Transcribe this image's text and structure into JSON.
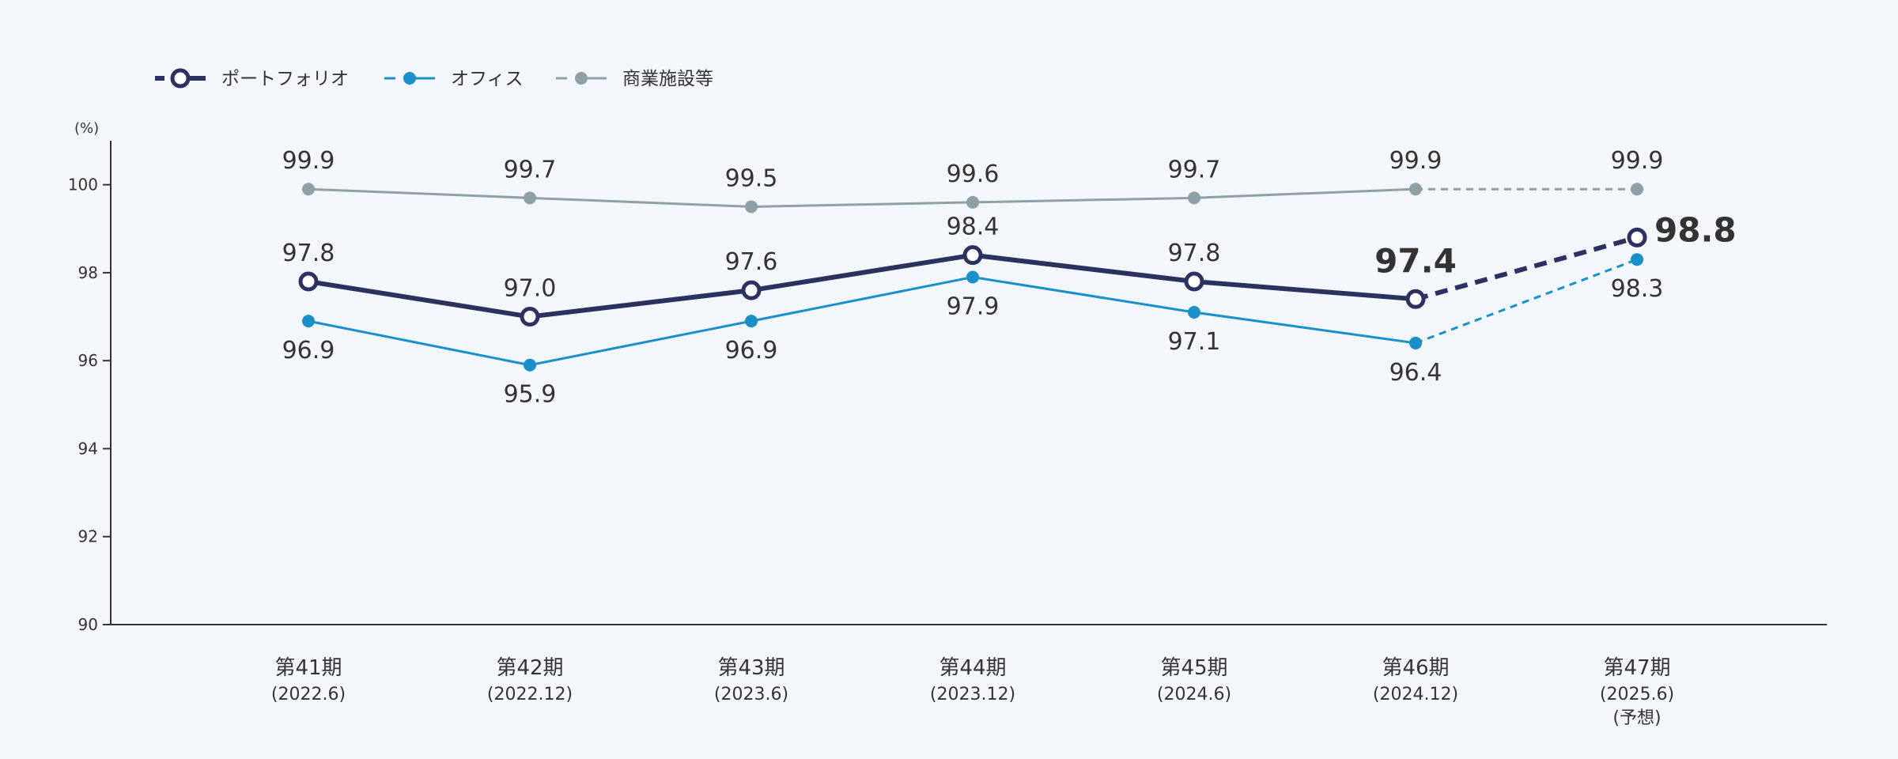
{
  "chart_data": {
    "type": "line",
    "unit": "(%)",
    "ylim": [
      90,
      101
    ],
    "yticks": [
      90,
      92,
      94,
      96,
      98,
      100
    ],
    "categories": [
      {
        "label": "第41期",
        "sub": [
          "(2022.6)"
        ]
      },
      {
        "label": "第42期",
        "sub": [
          "(2022.12)"
        ]
      },
      {
        "label": "第43期",
        "sub": [
          "(2023.6)"
        ]
      },
      {
        "label": "第44期",
        "sub": [
          "(2023.12)"
        ]
      },
      {
        "label": "第45期",
        "sub": [
          "(2024.6)"
        ]
      },
      {
        "label": "第46期",
        "sub": [
          "(2024.12)"
        ]
      },
      {
        "label": "第47期",
        "sub": [
          "(2025.6)",
          "(予想)"
        ]
      }
    ],
    "forecast_from_index": 5,
    "series": [
      {
        "name": "ポートフォリオ",
        "color": "#2c3260",
        "marker": "ring",
        "values": [
          97.8,
          97.0,
          97.6,
          98.4,
          97.8,
          97.4,
          98.8
        ],
        "labels": [
          "97.8",
          "97.0",
          "97.6",
          "98.4",
          "97.8",
          "97.4",
          "98.8"
        ]
      },
      {
        "name": "オフィス",
        "color": "#1a8fc9",
        "marker": "dot",
        "values": [
          96.9,
          95.9,
          96.9,
          97.9,
          97.1,
          96.4,
          98.3
        ],
        "labels": [
          "96.9",
          "95.9",
          "96.9",
          "97.9",
          "97.1",
          "96.4",
          "98.3"
        ]
      },
      {
        "name": "商業施設等",
        "color": "#8e9fa6",
        "marker": "dot",
        "values": [
          99.9,
          99.7,
          99.5,
          99.6,
          99.7,
          99.9,
          99.9
        ],
        "labels": [
          "99.9",
          "99.7",
          "99.5",
          "99.6",
          "99.7",
          "99.9",
          "99.9"
        ]
      }
    ],
    "legend_position": "top-left",
    "grid": false
  }
}
